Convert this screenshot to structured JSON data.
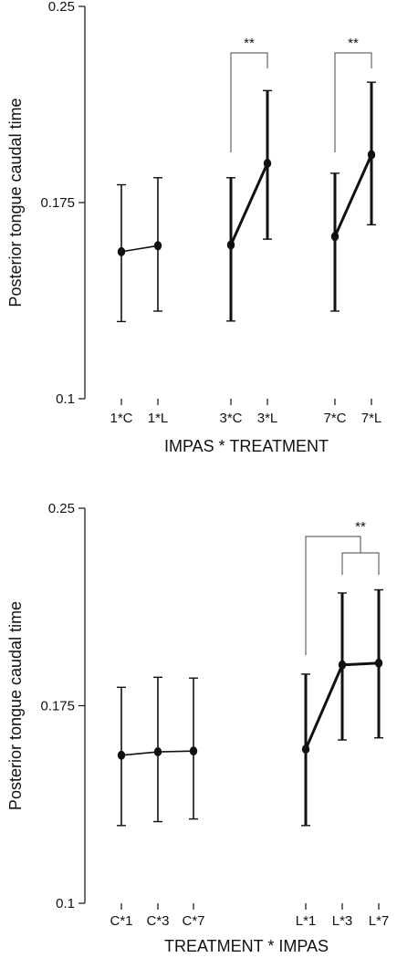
{
  "chart_data": [
    {
      "type": "line",
      "xlabel": "IMPAS * TREATMENT",
      "ylabel": "Posterior tongue caudal time",
      "ylim": [
        0.1,
        0.25
      ],
      "yticks": [
        "0.25",
        "0.175",
        "0.1"
      ],
      "groups": [
        {
          "categories": [
            "1*C",
            "1*L"
          ],
          "means": [
            0.1562,
            0.1585
          ],
          "lower": [
            0.1295,
            0.1335
          ],
          "upper": [
            0.1818,
            0.1845
          ],
          "emphasis": "thin"
        },
        {
          "categories": [
            "3*C",
            "3*L"
          ],
          "means": [
            0.1588,
            0.19
          ],
          "lower": [
            0.1297,
            0.161
          ],
          "upper": [
            0.1845,
            0.2178
          ],
          "emphasis": "thick"
        },
        {
          "categories": [
            "7*C",
            "7*L"
          ],
          "means": [
            0.162,
            0.1933
          ],
          "lower": [
            0.1335,
            0.1665
          ],
          "upper": [
            0.1862,
            0.221
          ],
          "emphasis": "thick"
        }
      ],
      "significance": [
        {
          "label": "**",
          "between": [
            "3*C",
            "3*L"
          ]
        },
        {
          "label": "**",
          "between": [
            "7*C",
            "7*L"
          ]
        }
      ]
    },
    {
      "type": "line",
      "xlabel": "TREATMENT * IMPAS",
      "ylabel": "Posterior tongue caudal time",
      "ylim": [
        0.1,
        0.25
      ],
      "yticks": [
        "0.25",
        "0.175",
        "0.1"
      ],
      "groups": [
        {
          "categories": [
            "C*1",
            "C*3",
            "C*7"
          ],
          "means": [
            0.1562,
            0.1575,
            0.1578
          ],
          "lower": [
            0.1295,
            0.131,
            0.132
          ],
          "upper": [
            0.182,
            0.1858,
            0.1855
          ],
          "emphasis": "thin"
        },
        {
          "categories": [
            "L*1",
            "L*3",
            "L*7"
          ],
          "means": [
            0.1585,
            0.1905,
            0.1912
          ],
          "lower": [
            0.1295,
            0.162,
            0.1628
          ],
          "upper": [
            0.187,
            0.2178,
            0.219
          ],
          "emphasis": "thick"
        }
      ],
      "significance": [
        {
          "label": "**",
          "between": [
            "L*1",
            "L*3+L*7"
          ]
        }
      ]
    }
  ]
}
